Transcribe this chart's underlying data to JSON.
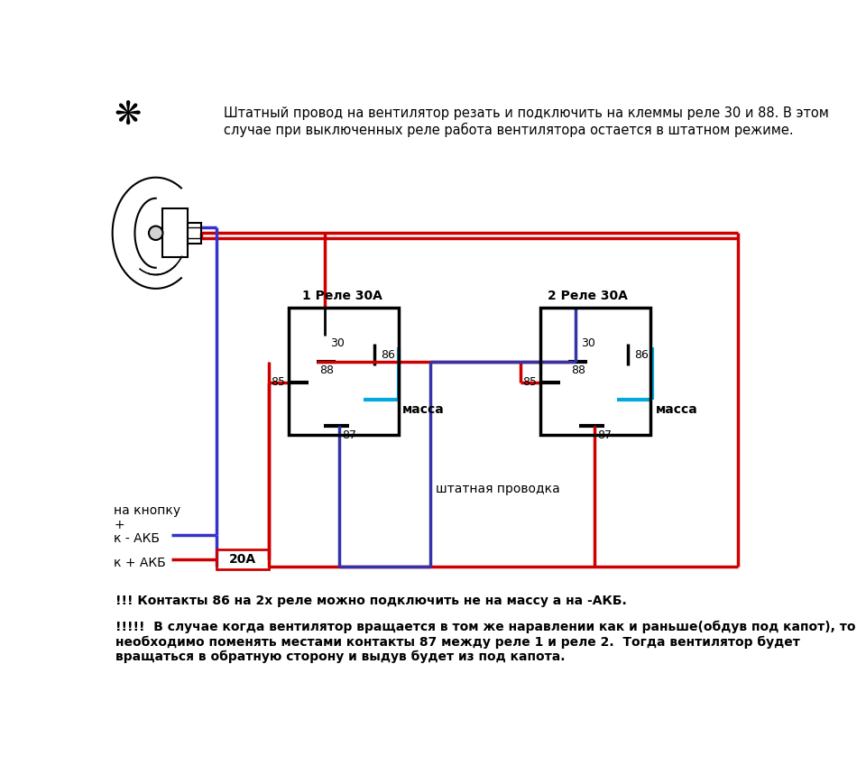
{
  "bg_color": "#ffffff",
  "title_text": "Штатный провод на вентилятор резать и подключить на клеммы реле 30 и 88. В этом\nслучае при выключенных реле работа вентилятора остается в штатном режиме.",
  "bottom_text1": "!!! Контакты 86 на 2х реле можно подключить не на массу а на -АКБ.",
  "bottom_text2": "!!!!!  В случае когда вентилятор вращается в том же наравлении как и раньше(обдув под капот), то\nнеобходимо поменять местами контакты 87 между реле 1 и реле 2.  Тогда вентилятор будет\nвращаться в обратную сторону и выдув будет из под капота.",
  "relay1_label": "1 Реле 30А",
  "relay2_label": "2 Реле 30А",
  "massa_label": "масса",
  "shtatnaya_label": "штатная проводка",
  "na_knopku_label": "на кнопку\n+",
  "k_akb_minus_label": "к - АКБ",
  "k_akb_plus_label": "к + АКБ",
  "fuse_label": "20А",
  "red": "#cc0000",
  "blue": "#3333cc",
  "dark_blue": "#3333aa",
  "cyan": "#00aadd",
  "black": "#000000",
  "note_color": "#000000"
}
